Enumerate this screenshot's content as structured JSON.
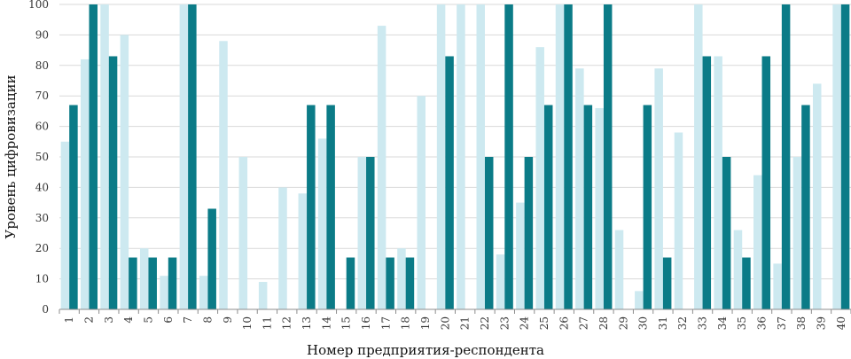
{
  "chart_data": {
    "type": "bar",
    "xlabel": "Номер предприятия-респондента",
    "ylabel": "Уровень цифровизации",
    "ylim": [
      0,
      100
    ],
    "yticks": [
      0,
      10,
      20,
      30,
      40,
      50,
      60,
      70,
      80,
      90,
      100
    ],
    "grid": true,
    "legend": "none",
    "colors": {
      "light": "#cde9f0",
      "dark": "#0b7b87",
      "grid": "#d9d9d9",
      "axis": "#8c8c8c"
    },
    "categories": [
      "1",
      "2",
      "3",
      "4",
      "5",
      "6",
      "7",
      "8",
      "9",
      "10",
      "11",
      "12",
      "13",
      "14",
      "15",
      "16",
      "17",
      "18",
      "19",
      "20",
      "21",
      "22",
      "23",
      "24",
      "25",
      "26",
      "27",
      "28",
      "29",
      "30",
      "31",
      "32",
      "33",
      "34",
      "35",
      "36",
      "37",
      "38",
      "39",
      "40"
    ],
    "series": [
      {
        "values": [
          55,
          82,
          100,
          90,
          20,
          11,
          100,
          11,
          88,
          50,
          9,
          40,
          38,
          56,
          0,
          50,
          93,
          20,
          70,
          100,
          100,
          100,
          18,
          35,
          86,
          100,
          79,
          66,
          26,
          6,
          79,
          58,
          100,
          83,
          26,
          44,
          15,
          50,
          74,
          100
        ]
      },
      {
        "values": [
          67,
          100,
          83,
          17,
          17,
          17,
          100,
          33,
          0,
          0,
          0,
          0,
          67,
          67,
          17,
          50,
          17,
          17,
          0,
          83,
          0,
          50,
          100,
          50,
          67,
          100,
          67,
          100,
          0,
          67,
          17,
          0,
          83,
          50,
          17,
          83,
          100,
          67,
          0,
          100
        ]
      }
    ]
  }
}
